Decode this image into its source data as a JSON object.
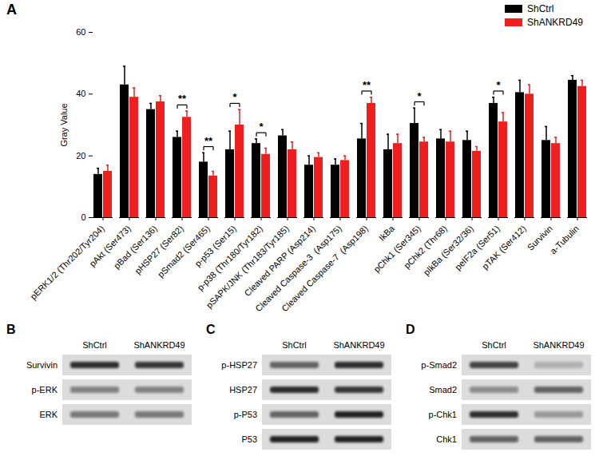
{
  "chart_data": {
    "type": "bar",
    "panel": "A",
    "y_label": "Gray Value",
    "categories": [
      "pERK1/2 (Thr202/Tyr204)",
      "pAkt (Ser473)",
      "pBad (Ser136)",
      "pHSP27 (Ser82)",
      "pSmad2 (Ser465)",
      "p-p53 (Ser15)",
      "p-p38 (Thr180/Tyr182)",
      "pSAPK/JNK (Thr183/Tyr185)",
      "Cleaved PARP (Asp214)",
      "Cleaved Caspase-3  (Asp175)",
      "Cleaved Caspase-7  (Asp198)",
      "IkBa",
      "pChk1 (Ser345)",
      "pChk2 (Thr68)",
      "pIkBa (Ser32/36)",
      "peIF2a (Ser51)",
      "pTAK (Ser412)",
      "Survivin",
      "a-Tubulin"
    ],
    "series": [
      {
        "name": "ShCtrl",
        "color": "#000000",
        "values": [
          14,
          43,
          35,
          26,
          18,
          22,
          24,
          26.5,
          17,
          17,
          25.5,
          22,
          30.5,
          25.5,
          25,
          37,
          40.5,
          25,
          44.5
        ],
        "errors": [
          2,
          6,
          2,
          2,
          3,
          6,
          1.5,
          2,
          3,
          2,
          5,
          5,
          5,
          3,
          3,
          2,
          4,
          4.5,
          1.5
        ]
      },
      {
        "name": "ShANKRD49",
        "color": "#f01e1e",
        "values": [
          15,
          39,
          37.5,
          32.5,
          13.5,
          30,
          20.5,
          22,
          19.5,
          18.5,
          37,
          24,
          24.5,
          24.5,
          21.5,
          31,
          40,
          24,
          42.5
        ],
        "errors": [
          2,
          3,
          2,
          2,
          1.5,
          5,
          2,
          2.5,
          1.5,
          1.5,
          2,
          3,
          1.5,
          3.5,
          1.5,
          3,
          3,
          2,
          2
        ]
      }
    ],
    "significance": [
      {
        "category": "pHSP27 (Ser82)",
        "label": "**"
      },
      {
        "category": "pSmad2 (Ser465)",
        "label": "**"
      },
      {
        "category": "p-p53 (Ser15)",
        "label": "*"
      },
      {
        "category": "p-p38 (Thr180/Tyr182)",
        "label": "*"
      },
      {
        "category": "Cleaved Caspase-7  (Asp198)",
        "label": "**"
      },
      {
        "category": "pChk1 (Ser345)",
        "label": "*"
      },
      {
        "category": "peIF2a (Ser51)",
        "label": "*"
      }
    ],
    "ylim": [
      0,
      60
    ],
    "yticks": [
      0,
      20,
      40,
      60
    ],
    "legend": "top-right"
  },
  "blots": [
    {
      "panel": "B",
      "lanes": [
        "ShCtrl",
        "ShANKRD49"
      ],
      "rows": [
        {
          "label": "Survivin",
          "intensity": [
            0.85,
            0.8
          ]
        },
        {
          "label": "p-ERK",
          "intensity": [
            0.45,
            0.45
          ]
        },
        {
          "label": "ERK",
          "intensity": [
            0.5,
            0.5
          ]
        }
      ]
    },
    {
      "panel": "C",
      "lanes": [
        "ShCtrl",
        "ShANKRD49"
      ],
      "rows": [
        {
          "label": "p-HSP27",
          "intensity": [
            0.6,
            0.85
          ]
        },
        {
          "label": "HSP27",
          "intensity": [
            0.85,
            0.8
          ]
        },
        {
          "label": "p-P53",
          "intensity": [
            0.6,
            0.9
          ]
        },
        {
          "label": "P53",
          "intensity": [
            0.9,
            0.9
          ]
        }
      ]
    },
    {
      "panel": "D",
      "lanes": [
        "ShCtrl",
        "ShANKRD49"
      ],
      "rows": [
        {
          "label": "p-Smad2",
          "intensity": [
            0.75,
            0.2
          ]
        },
        {
          "label": "Smad2",
          "intensity": [
            0.4,
            0.6
          ]
        },
        {
          "label": "p-Chk1",
          "intensity": [
            0.85,
            0.35
          ]
        },
        {
          "label": "Chk1",
          "intensity": [
            0.6,
            0.6
          ]
        }
      ]
    }
  ]
}
